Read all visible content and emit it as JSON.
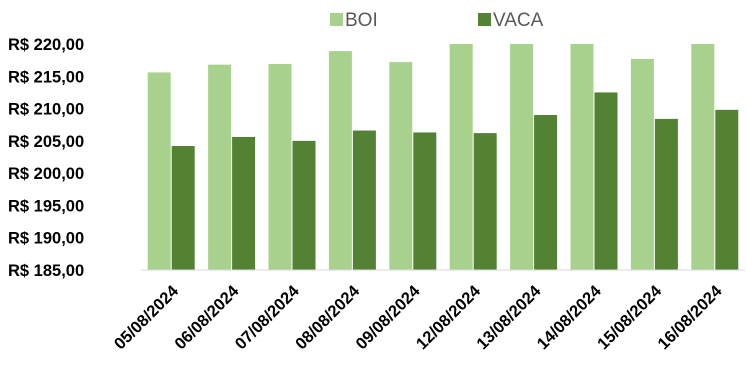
{
  "chart_data": {
    "type": "bar",
    "title": "",
    "xlabel": "",
    "ylabel": "",
    "categories": [
      "05/08/2024",
      "06/08/2024",
      "07/08/2024",
      "08/08/2024",
      "09/08/2024",
      "12/08/2024",
      "13/08/2024",
      "14/08/2024",
      "15/08/2024",
      "16/08/2024"
    ],
    "series": [
      {
        "name": "BOI",
        "color": "#a9d18e",
        "values": [
          215.6,
          216.8,
          216.9,
          218.9,
          217.2,
          220.0,
          220.0,
          220.0,
          217.7,
          220.0
        ]
      },
      {
        "name": "VACA",
        "color": "#548235",
        "values": [
          204.2,
          205.6,
          205.0,
          206.6,
          206.3,
          206.2,
          209.0,
          212.5,
          208.4,
          209.8
        ]
      }
    ],
    "ylim": [
      185,
      220
    ],
    "yticks": [
      "R$ 185,00",
      "R$ 190,00",
      "R$ 195,00",
      "R$ 200,00",
      "R$ 205,00",
      "R$ 210,00",
      "R$ 215,00",
      "R$ 220,00"
    ],
    "ytick_values": [
      185,
      190,
      195,
      200,
      205,
      210,
      215,
      220
    ],
    "grid": false,
    "legend_position": "top"
  }
}
